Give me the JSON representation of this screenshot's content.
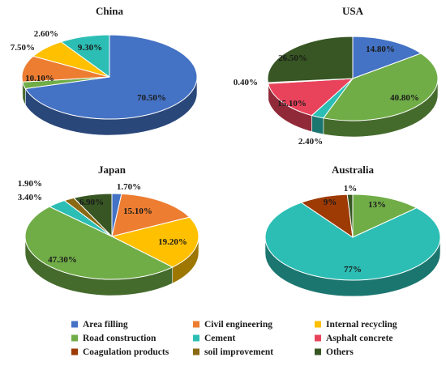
{
  "chart_data": {
    "type": "pie",
    "legend_position": "bottom",
    "categories": [
      "Area filling",
      "Civil engineering",
      "Internal recycling",
      "Road construction",
      "Cement",
      "Asphalt concrete",
      "Coagulation products",
      "soil improvement",
      "Others"
    ],
    "colors": [
      "#4472c4",
      "#ed7d31",
      "#ffc000",
      "#70ad47",
      "#2cbeb4",
      "#e8435b",
      "#9e3a04",
      "#8b6914",
      "#375623"
    ],
    "charts": [
      {
        "title": "China",
        "slices": [
          {
            "category": "Area filling",
            "value": 70.5,
            "label": "70.50%"
          },
          {
            "category": "Road construction",
            "value": 2.6,
            "label": "2.60%"
          },
          {
            "category": "Civil engineering",
            "value": 10.1,
            "label": "10.10%"
          },
          {
            "category": "Internal recycling",
            "value": 7.5,
            "label": "7.50%"
          },
          {
            "category": "Cement",
            "value": 9.3,
            "label": "9.30%"
          }
        ]
      },
      {
        "title": "USA",
        "slices": [
          {
            "category": "Area filling",
            "value": 14.8,
            "label": "14.80%"
          },
          {
            "category": "Road construction",
            "value": 40.8,
            "label": "40.80%"
          },
          {
            "category": "Cement",
            "value": 2.4,
            "label": "2.40%"
          },
          {
            "category": "Asphalt concrete",
            "value": 15.1,
            "label": "15.10%"
          },
          {
            "category": "Coagulation products",
            "value": 0.4,
            "label": "0.40%"
          },
          {
            "category": "Others",
            "value": 26.5,
            "label": "26.50%"
          }
        ]
      },
      {
        "title": "Japan",
        "slices": [
          {
            "category": "Area filling",
            "value": 1.7,
            "label": "1.70%"
          },
          {
            "category": "Civil engineering",
            "value": 15.1,
            "label": "15.10%"
          },
          {
            "category": "Internal recycling",
            "value": 19.2,
            "label": "19.20%"
          },
          {
            "category": "Road construction",
            "value": 47.3,
            "label": "47.30%"
          },
          {
            "category": "Cement",
            "value": 3.4,
            "label": "3.40%"
          },
          {
            "category": "soil improvement",
            "value": 1.9,
            "label": "1.90%"
          },
          {
            "category": "Others",
            "value": 6.9,
            "label": "6.90%"
          }
        ]
      },
      {
        "title": "Australia",
        "slices": [
          {
            "category": "Road construction",
            "value": 13,
            "label": "13%"
          },
          {
            "category": "Cement",
            "value": 77,
            "label": "77%"
          },
          {
            "category": "Coagulation products",
            "value": 9,
            "label": "9%"
          },
          {
            "category": "Others",
            "value": 1,
            "label": "1%"
          }
        ]
      }
    ]
  }
}
